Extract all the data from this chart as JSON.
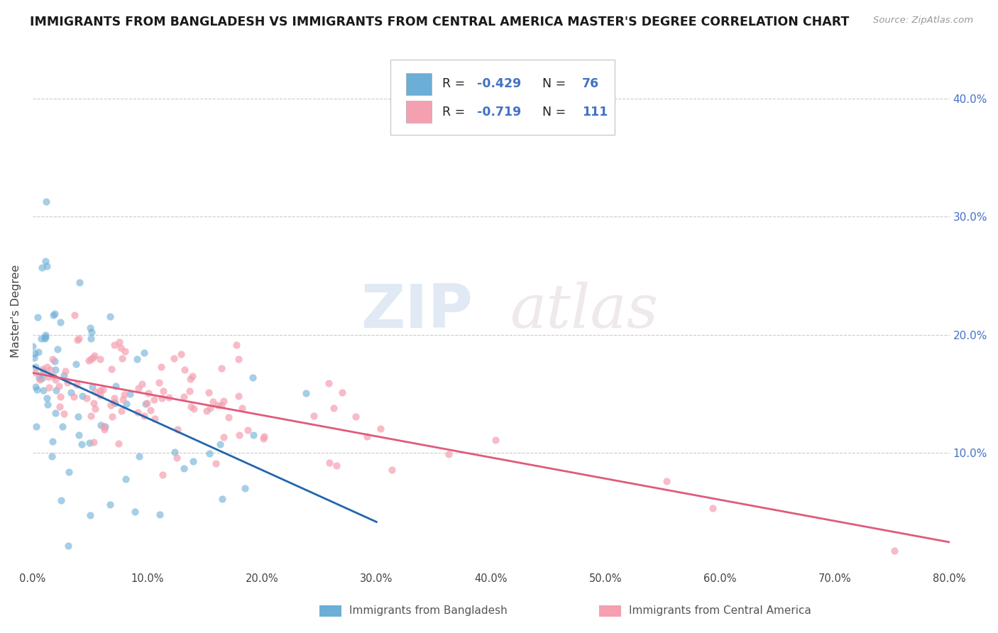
{
  "title": "IMMIGRANTS FROM BANGLADESH VS IMMIGRANTS FROM CENTRAL AMERICA MASTER'S DEGREE CORRELATION CHART",
  "source_text": "Source: ZipAtlas.com",
  "ylabel": "Master's Degree",
  "legend_label_1": "Immigrants from Bangladesh",
  "legend_label_2": "Immigrants from Central America",
  "R1": -0.429,
  "N1": 76,
  "R2": -0.719,
  "N2": 111,
  "color1": "#6baed6",
  "color2": "#f4a0b0",
  "line_color1": "#2166ac",
  "line_color2": "#e05a7a",
  "background_color": "#ffffff",
  "watermark_zip": "ZIP",
  "watermark_atlas": "atlas",
  "xlim": [
    0.0,
    0.8
  ],
  "ylim": [
    0.0,
    0.44
  ],
  "xtick_labels": [
    "0.0%",
    "",
    "10.0%",
    "",
    "20.0%",
    "",
    "30.0%",
    "",
    "40.0%",
    "",
    "50.0%",
    "",
    "60.0%",
    "",
    "70.0%",
    "",
    "80.0%"
  ],
  "xtick_vals": [
    0.0,
    0.05,
    0.1,
    0.15,
    0.2,
    0.25,
    0.3,
    0.35,
    0.4,
    0.45,
    0.5,
    0.55,
    0.6,
    0.65,
    0.7,
    0.75,
    0.8
  ],
  "ytick_labels": [
    "10.0%",
    "20.0%",
    "30.0%",
    "40.0%"
  ],
  "ytick_vals": [
    0.1,
    0.2,
    0.3,
    0.4
  ],
  "seed1": 42,
  "seed2": 123
}
